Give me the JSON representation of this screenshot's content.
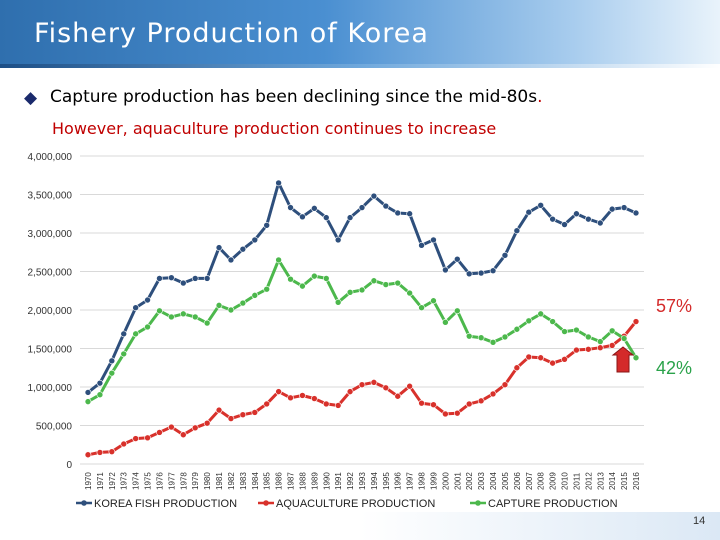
{
  "header": {
    "title": "Fishery Production of Korea"
  },
  "subtitle": {
    "bullet_icon": "diamond-icon",
    "bullet": "◆",
    "line1": "Capture production has been declining since the mid-80s",
    "line1_end": ".",
    "line2": "However, aquaculture production continues to increase"
  },
  "annotations": {
    "aquaculture_share": "57%",
    "capture_share": "42%",
    "arrow_icon": "arrow-up-icon"
  },
  "page_number": "14",
  "colors": {
    "korea": "#2e4f7c",
    "aquaculture": "#d8312b",
    "capture": "#4cb84c",
    "arrow": "#d42a2a"
  },
  "chart_data": {
    "type": "line",
    "title": "",
    "xlabel": "",
    "ylabel": "",
    "ylim": [
      0,
      4000000
    ],
    "yticks": [
      0,
      500000,
      1000000,
      1500000,
      2000000,
      2500000,
      3000000,
      3500000,
      4000000
    ],
    "ytick_labels": [
      "0",
      "500,000",
      "1,000,000",
      "1,500,000",
      "2,000,000",
      "2,500,000",
      "3,000,000",
      "3,500,000",
      "4,000,000"
    ],
    "grid": true,
    "legend_position": "bottom",
    "x": [
      "1970",
      "1971",
      "1972",
      "1973",
      "1974",
      "1975",
      "1976",
      "1977",
      "1978",
      "1979",
      "1980",
      "1981",
      "1982",
      "1983",
      "1984",
      "1985",
      "1986",
      "1987",
      "1988",
      "1989",
      "1990",
      "1991",
      "1992",
      "1993",
      "1994",
      "1995",
      "1996",
      "1997",
      "1998",
      "1999",
      "2000",
      "2001",
      "2002",
      "2003",
      "2004",
      "2005",
      "2006",
      "2007",
      "2008",
      "2009",
      "2010",
      "2011",
      "2012",
      "2013",
      "2014",
      "2015",
      "2016"
    ],
    "series": [
      {
        "name": "KOREA FISH PRODUCTION",
        "color": "#2e4f7c",
        "values": [
          930000,
          1050000,
          1340000,
          1690000,
          2030000,
          2130000,
          2410000,
          2420000,
          2350000,
          2410000,
          2410000,
          2810000,
          2650000,
          2790000,
          2910000,
          3100000,
          3650000,
          3330000,
          3210000,
          3320000,
          3200000,
          2910000,
          3200000,
          3330000,
          3480000,
          3350000,
          3260000,
          3250000,
          2840000,
          2910000,
          2520000,
          2660000,
          2470000,
          2480000,
          2510000,
          2710000,
          3030000,
          3270000,
          3360000,
          3180000,
          3110000,
          3250000,
          3180000,
          3130000,
          3310000,
          3330000,
          3260000
        ]
      },
      {
        "name": "AQUACULTURE PRODUCTION",
        "color": "#d8312b",
        "values": [
          120000,
          150000,
          160000,
          260000,
          330000,
          340000,
          410000,
          480000,
          380000,
          470000,
          530000,
          700000,
          590000,
          640000,
          670000,
          780000,
          940000,
          860000,
          890000,
          850000,
          780000,
          760000,
          940000,
          1030000,
          1060000,
          990000,
          880000,
          1010000,
          790000,
          770000,
          650000,
          660000,
          780000,
          820000,
          910000,
          1030000,
          1250000,
          1390000,
          1380000,
          1310000,
          1360000,
          1480000,
          1490000,
          1510000,
          1540000,
          1660000,
          1850000
        ]
      },
      {
        "name": "CAPTURE PRODUCTION",
        "color": "#4cb84c",
        "values": [
          810000,
          900000,
          1180000,
          1430000,
          1690000,
          1780000,
          1990000,
          1910000,
          1950000,
          1910000,
          1830000,
          2060000,
          2000000,
          2090000,
          2190000,
          2270000,
          2650000,
          2400000,
          2310000,
          2440000,
          2410000,
          2100000,
          2230000,
          2260000,
          2380000,
          2330000,
          2350000,
          2220000,
          2030000,
          2120000,
          1840000,
          1990000,
          1660000,
          1640000,
          1580000,
          1650000,
          1750000,
          1860000,
          1950000,
          1850000,
          1720000,
          1740000,
          1650000,
          1590000,
          1730000,
          1630000,
          1380000
        ]
      }
    ]
  }
}
